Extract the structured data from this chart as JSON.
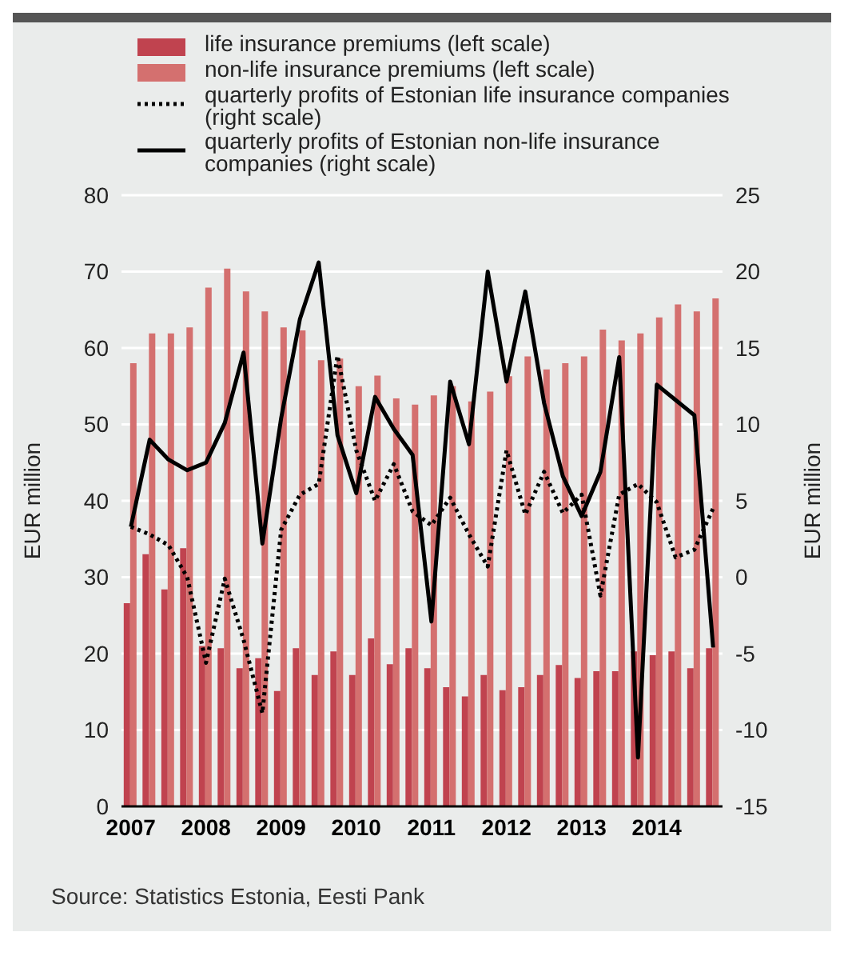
{
  "chart_data": {
    "type": "bar",
    "ylabel": "EUR million",
    "y2label": "EUR million",
    "categories": [
      "2007",
      null,
      null,
      null,
      "2008",
      null,
      null,
      null,
      "2009",
      null,
      null,
      null,
      "2010",
      null,
      null,
      null,
      "2011",
      null,
      null,
      null,
      "2012",
      null,
      null,
      null,
      "2013",
      null,
      null,
      null,
      "2014",
      null,
      null,
      null
    ],
    "series": [
      {
        "name": "life insurance premiums (left scale)",
        "color": "#c0434f",
        "values": [
          26.6,
          33.0,
          28.4,
          33.8,
          21,
          20.7,
          18.1,
          19.4,
          15.1,
          20.7,
          17.2,
          20.3,
          17.2,
          22.0,
          18.6,
          20.7,
          18.1,
          15.6,
          14.4,
          17.2,
          15.2,
          15.6,
          17.2,
          18.5,
          16.8,
          17.7,
          17.7,
          20.3,
          19.8,
          20.3,
          18.1,
          20.7
        ]
      },
      {
        "name": "non-life insurance premiums (left scale)",
        "color": "#d4706f",
        "values": [
          58.0,
          61.9,
          61.9,
          62.7,
          67.9,
          70.4,
          67.4,
          64.8,
          62.7,
          62.3,
          58.4,
          58.6,
          55.0,
          56.4,
          53.4,
          52.6,
          53.8,
          55.0,
          53.0,
          54.3,
          56.3,
          58.9,
          57.2,
          58.0,
          58.9,
          62.4,
          61.0,
          61.9,
          64.0,
          65.7,
          64.8,
          66.5
        ]
      },
      {
        "name": "quarterly profits of Estonian life insurance companies (right scale)",
        "type": "line",
        "axis": "y2",
        "line_style": "dotted",
        "color": "#000000",
        "values": [
          3.3,
          2.8,
          2.1,
          0.0,
          -5.6,
          -0.1,
          -4.1,
          -8.9,
          3.1,
          5.4,
          6.1,
          14.5,
          8.3,
          5.0,
          7.4,
          4.3,
          3.4,
          5.2,
          2.8,
          0.7,
          8.3,
          4.1,
          6.9,
          4.2,
          5.4,
          -1.2,
          5.4,
          6.1,
          4.9,
          1.3,
          1.8,
          4.5
        ]
      },
      {
        "name": "quarterly profits of Estonian non-life insurance companies (right scale)",
        "type": "line",
        "axis": "y2",
        "line_style": "solid",
        "color": "#000000",
        "values": [
          3.3,
          9.0,
          7.7,
          7.0,
          7.5,
          10.1,
          14.7,
          2.2,
          10.4,
          16.9,
          20.6,
          9.3,
          5.5,
          11.8,
          9.7,
          8.0,
          -2.9,
          12.8,
          8.7,
          20.0,
          12.8,
          18.7,
          11.4,
          6.6,
          4.0,
          6.9,
          14.4,
          -11.8,
          12.6,
          11.6,
          10.6,
          -4.6
        ]
      }
    ],
    "ylim": [
      0,
      80
    ],
    "yticks": [
      0,
      10,
      20,
      30,
      40,
      50,
      60,
      70,
      80
    ],
    "y2lim": [
      -15,
      25
    ],
    "y2ticks": [
      -15,
      -10,
      -5,
      0,
      5,
      10,
      15,
      20,
      25
    ],
    "grid": "y",
    "legend": "top",
    "marker": "none",
    "annotations": [
      "Source: Statistics Estonia, Eesti Pank"
    ]
  }
}
